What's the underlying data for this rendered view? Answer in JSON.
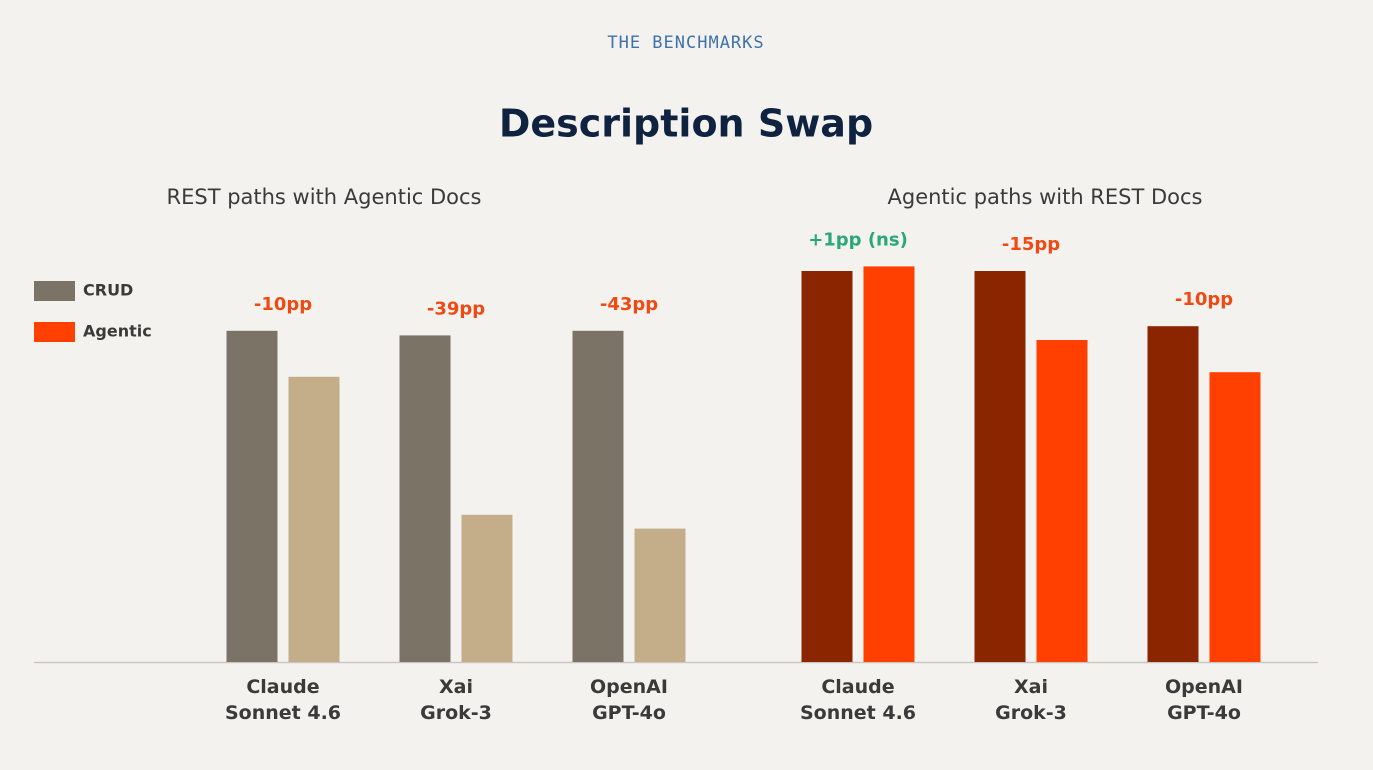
{
  "eyebrow": "THE BENCHMARKS",
  "title": "Description Swap",
  "legend": [
    {
      "name": "CRUD",
      "color": "#7b7366"
    },
    {
      "name": "Agentic",
      "color": "#ff4000"
    }
  ],
  "chart_data": [
    {
      "type": "bar",
      "title": "REST paths with Agentic Docs",
      "categories": [
        "Claude\nSonnet 4.6",
        "Xai\nGrok-3",
        "OpenAI\nGPT-4o"
      ],
      "series": [
        {
          "name": "CRUD",
          "color": "#7b7366",
          "values": [
            72,
            71,
            72
          ]
        },
        {
          "name": "Agentic",
          "color": "#c4ae8a",
          "values": [
            62,
            32,
            29
          ]
        }
      ],
      "annotations": [
        {
          "text": "-10pp",
          "color": "#f04a12"
        },
        {
          "text": "-39pp",
          "color": "#f04a12"
        },
        {
          "text": "-43pp",
          "color": "#f04a12"
        }
      ],
      "ylim": [
        0,
        100
      ]
    },
    {
      "type": "bar",
      "title": "Agentic paths with REST Docs",
      "categories": [
        "Claude\nSonnet 4.6",
        "Xai\nGrok-3",
        "OpenAI\nGPT-4o"
      ],
      "series": [
        {
          "name": "CRUD",
          "color": "#8b2500",
          "values": [
            85,
            85,
            73
          ]
        },
        {
          "name": "Agentic",
          "color": "#ff4000",
          "values": [
            86,
            70,
            63
          ]
        }
      ],
      "annotations": [
        {
          "text": "+1pp (ns)",
          "color": "#2aa876"
        },
        {
          "text": "-15pp",
          "color": "#f04a12"
        },
        {
          "text": "-10pp",
          "color": "#f04a12"
        }
      ],
      "ylim": [
        0,
        100
      ]
    }
  ]
}
